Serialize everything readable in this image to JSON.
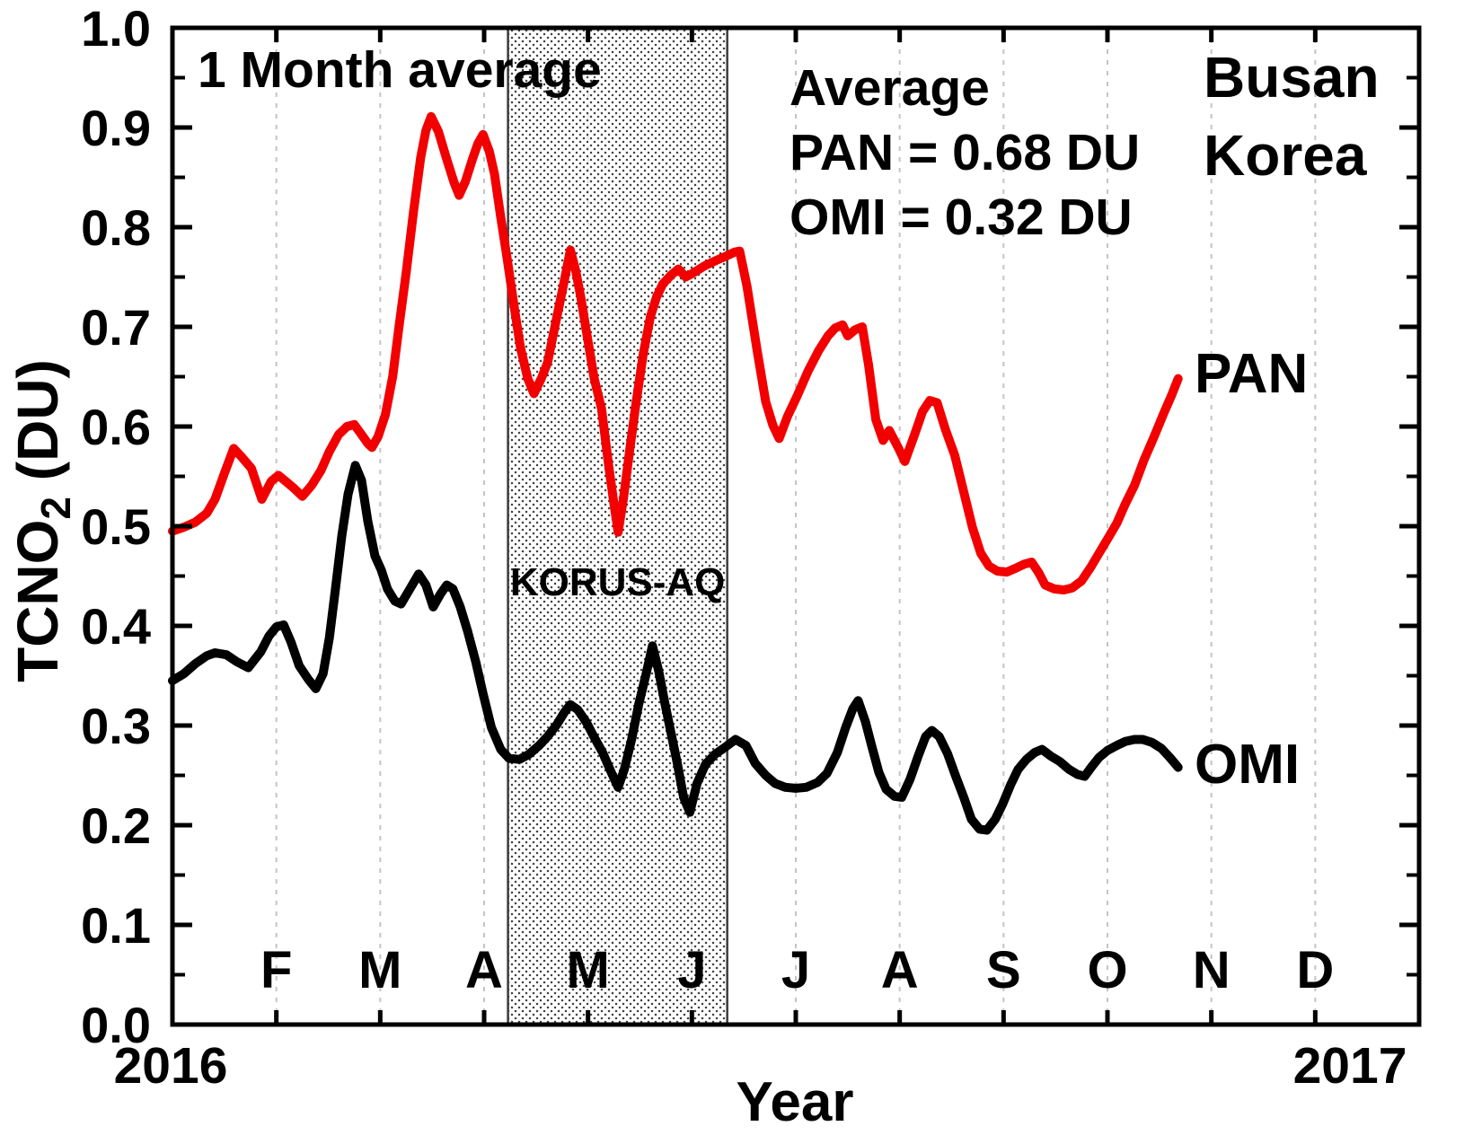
{
  "figure": {
    "note_top_left": "1 Month average",
    "location": {
      "line1": "Busan",
      "line2": "Korea"
    },
    "legend": {
      "header": "Average",
      "pan_line": "PAN = 0.68 DU",
      "omi_line": "OMI = 0.32 DU"
    },
    "campaign_label": "KORUS-AQ",
    "series_label_pan": "PAN",
    "series_label_omi": "OMI",
    "colors": {
      "pan": "#f20000",
      "omi": "#000000",
      "grid": "#c4c4c4",
      "axis": "#000000",
      "box_border": "#3c3c3c",
      "box_dot": "#3f3f3f",
      "background": "#ffffff"
    }
  },
  "chart_data": {
    "type": "line",
    "title": "",
    "xlabel": "Year",
    "ylabel_parts": {
      "main": "TCNO",
      "sub": "2",
      "unit": " (DU)"
    },
    "x_axis": {
      "start_year_label": "2016",
      "end_year_label": "2017",
      "month_tick_labels": [
        "F",
        "M",
        "A",
        "M",
        "J",
        "J",
        "A",
        "S",
        "O",
        "N",
        "D"
      ],
      "range_months": [
        0,
        12
      ],
      "grid": true
    },
    "y_axis": {
      "tick_labels": [
        "0.0",
        "0.1",
        "0.2",
        "0.3",
        "0.4",
        "0.5",
        "0.6",
        "0.7",
        "0.8",
        "0.9",
        "1.0"
      ],
      "major_step": 0.1,
      "minor_step": 0.05,
      "range": [
        0.0,
        1.0
      ]
    },
    "shaded_region": {
      "label": "KORUS-AQ",
      "x_start_month": 3.23,
      "x_end_month": 5.34
    },
    "series": [
      {
        "name": "PAN",
        "color": "#f20000",
        "average_du": 0.68,
        "points": [
          [
            0.0,
            0.495
          ],
          [
            0.11,
            0.499
          ],
          [
            0.22,
            0.504
          ],
          [
            0.33,
            0.513
          ],
          [
            0.41,
            0.527
          ],
          [
            0.5,
            0.553
          ],
          [
            0.59,
            0.578
          ],
          [
            0.67,
            0.569
          ],
          [
            0.76,
            0.558
          ],
          [
            0.86,
            0.527
          ],
          [
            0.95,
            0.545
          ],
          [
            1.02,
            0.551
          ],
          [
            1.09,
            0.545
          ],
          [
            1.17,
            0.538
          ],
          [
            1.25,
            0.53
          ],
          [
            1.34,
            0.541
          ],
          [
            1.43,
            0.556
          ],
          [
            1.51,
            0.575
          ],
          [
            1.6,
            0.592
          ],
          [
            1.68,
            0.6
          ],
          [
            1.75,
            0.602
          ],
          [
            1.82,
            0.592
          ],
          [
            1.88,
            0.583
          ],
          [
            1.92,
            0.579
          ],
          [
            1.98,
            0.59
          ],
          [
            2.05,
            0.612
          ],
          [
            2.12,
            0.65
          ],
          [
            2.18,
            0.7
          ],
          [
            2.25,
            0.755
          ],
          [
            2.32,
            0.815
          ],
          [
            2.39,
            0.87
          ],
          [
            2.44,
            0.897
          ],
          [
            2.49,
            0.911
          ],
          [
            2.56,
            0.896
          ],
          [
            2.64,
            0.868
          ],
          [
            2.71,
            0.845
          ],
          [
            2.76,
            0.832
          ],
          [
            2.82,
            0.846
          ],
          [
            2.89,
            0.869
          ],
          [
            2.94,
            0.884
          ],
          [
            2.99,
            0.893
          ],
          [
            3.05,
            0.876
          ],
          [
            3.1,
            0.853
          ],
          [
            3.16,
            0.81
          ],
          [
            3.22,
            0.77
          ],
          [
            3.29,
            0.72
          ],
          [
            3.35,
            0.679
          ],
          [
            3.42,
            0.648
          ],
          [
            3.48,
            0.633
          ],
          [
            3.55,
            0.648
          ],
          [
            3.61,
            0.664
          ],
          [
            3.68,
            0.7
          ],
          [
            3.76,
            0.74
          ],
          [
            3.83,
            0.777
          ],
          [
            3.88,
            0.757
          ],
          [
            3.93,
            0.73
          ],
          [
            3.99,
            0.692
          ],
          [
            4.06,
            0.648
          ],
          [
            4.13,
            0.618
          ],
          [
            4.2,
            0.56
          ],
          [
            4.25,
            0.522
          ],
          [
            4.29,
            0.494
          ],
          [
            4.34,
            0.527
          ],
          [
            4.4,
            0.575
          ],
          [
            4.46,
            0.622
          ],
          [
            4.53,
            0.672
          ],
          [
            4.6,
            0.71
          ],
          [
            4.66,
            0.73
          ],
          [
            4.72,
            0.743
          ],
          [
            4.8,
            0.752
          ],
          [
            4.87,
            0.758
          ],
          [
            4.94,
            0.75
          ],
          [
            5.01,
            0.754
          ],
          [
            5.12,
            0.761
          ],
          [
            5.22,
            0.766
          ],
          [
            5.33,
            0.771
          ],
          [
            5.41,
            0.775
          ],
          [
            5.46,
            0.776
          ],
          [
            5.53,
            0.741
          ],
          [
            5.63,
            0.675
          ],
          [
            5.71,
            0.625
          ],
          [
            5.78,
            0.601
          ],
          [
            5.84,
            0.588
          ],
          [
            5.92,
            0.61
          ],
          [
            6.01,
            0.63
          ],
          [
            6.12,
            0.656
          ],
          [
            6.22,
            0.676
          ],
          [
            6.31,
            0.691
          ],
          [
            6.38,
            0.699
          ],
          [
            6.45,
            0.702
          ],
          [
            6.5,
            0.691
          ],
          [
            6.57,
            0.697
          ],
          [
            6.64,
            0.7
          ],
          [
            6.7,
            0.662
          ],
          [
            6.77,
            0.607
          ],
          [
            6.84,
            0.586
          ],
          [
            6.9,
            0.596
          ],
          [
            6.99,
            0.578
          ],
          [
            7.05,
            0.565
          ],
          [
            7.14,
            0.591
          ],
          [
            7.22,
            0.615
          ],
          [
            7.29,
            0.626
          ],
          [
            7.36,
            0.624
          ],
          [
            7.44,
            0.597
          ],
          [
            7.53,
            0.571
          ],
          [
            7.62,
            0.533
          ],
          [
            7.7,
            0.499
          ],
          [
            7.78,
            0.473
          ],
          [
            7.86,
            0.46
          ],
          [
            7.94,
            0.455
          ],
          [
            8.03,
            0.454
          ],
          [
            8.12,
            0.458
          ],
          [
            8.2,
            0.462
          ],
          [
            8.27,
            0.464
          ],
          [
            8.34,
            0.453
          ],
          [
            8.4,
            0.441
          ],
          [
            8.49,
            0.437
          ],
          [
            8.58,
            0.436
          ],
          [
            8.66,
            0.438
          ],
          [
            8.75,
            0.445
          ],
          [
            8.84,
            0.459
          ],
          [
            8.92,
            0.473
          ],
          [
            9.0,
            0.487
          ],
          [
            9.09,
            0.503
          ],
          [
            9.17,
            0.522
          ],
          [
            9.26,
            0.541
          ],
          [
            9.35,
            0.566
          ],
          [
            9.45,
            0.59
          ],
          [
            9.54,
            0.613
          ],
          [
            9.62,
            0.632
          ],
          [
            9.68,
            0.648
          ]
        ]
      },
      {
        "name": "OMI",
        "color": "#000000",
        "average_du": 0.32,
        "points": [
          [
            0.0,
            0.345
          ],
          [
            0.11,
            0.352
          ],
          [
            0.22,
            0.362
          ],
          [
            0.33,
            0.37
          ],
          [
            0.41,
            0.373
          ],
          [
            0.52,
            0.371
          ],
          [
            0.62,
            0.364
          ],
          [
            0.73,
            0.358
          ],
          [
            0.85,
            0.374
          ],
          [
            0.93,
            0.39
          ],
          [
            1.0,
            0.399
          ],
          [
            1.07,
            0.401
          ],
          [
            1.14,
            0.384
          ],
          [
            1.22,
            0.36
          ],
          [
            1.31,
            0.346
          ],
          [
            1.38,
            0.337
          ],
          [
            1.45,
            0.352
          ],
          [
            1.51,
            0.388
          ],
          [
            1.57,
            0.438
          ],
          [
            1.63,
            0.49
          ],
          [
            1.69,
            0.532
          ],
          [
            1.76,
            0.561
          ],
          [
            1.82,
            0.546
          ],
          [
            1.88,
            0.505
          ],
          [
            1.95,
            0.47
          ],
          [
            2.01,
            0.456
          ],
          [
            2.07,
            0.437
          ],
          [
            2.14,
            0.425
          ],
          [
            2.2,
            0.422
          ],
          [
            2.28,
            0.436
          ],
          [
            2.37,
            0.452
          ],
          [
            2.44,
            0.441
          ],
          [
            2.51,
            0.419
          ],
          [
            2.58,
            0.432
          ],
          [
            2.64,
            0.441
          ],
          [
            2.7,
            0.437
          ],
          [
            2.77,
            0.419
          ],
          [
            2.84,
            0.395
          ],
          [
            2.92,
            0.364
          ],
          [
            2.99,
            0.332
          ],
          [
            3.07,
            0.298
          ],
          [
            3.16,
            0.276
          ],
          [
            3.24,
            0.267
          ],
          [
            3.34,
            0.266
          ],
          [
            3.43,
            0.271
          ],
          [
            3.53,
            0.28
          ],
          [
            3.61,
            0.289
          ],
          [
            3.7,
            0.301
          ],
          [
            3.77,
            0.313
          ],
          [
            3.83,
            0.321
          ],
          [
            3.9,
            0.316
          ],
          [
            3.98,
            0.304
          ],
          [
            4.05,
            0.29
          ],
          [
            4.14,
            0.273
          ],
          [
            4.22,
            0.254
          ],
          [
            4.29,
            0.238
          ],
          [
            4.35,
            0.256
          ],
          [
            4.42,
            0.286
          ],
          [
            4.49,
            0.322
          ],
          [
            4.56,
            0.352
          ],
          [
            4.62,
            0.38
          ],
          [
            4.68,
            0.355
          ],
          [
            4.74,
            0.322
          ],
          [
            4.8,
            0.292
          ],
          [
            4.86,
            0.262
          ],
          [
            4.92,
            0.228
          ],
          [
            4.98,
            0.213
          ],
          [
            5.05,
            0.242
          ],
          [
            5.13,
            0.261
          ],
          [
            5.22,
            0.271
          ],
          [
            5.33,
            0.279
          ],
          [
            5.42,
            0.286
          ],
          [
            5.52,
            0.28
          ],
          [
            5.61,
            0.262
          ],
          [
            5.71,
            0.25
          ],
          [
            5.8,
            0.242
          ],
          [
            5.9,
            0.238
          ],
          [
            6.0,
            0.237
          ],
          [
            6.1,
            0.238
          ],
          [
            6.21,
            0.243
          ],
          [
            6.3,
            0.252
          ],
          [
            6.4,
            0.273
          ],
          [
            6.48,
            0.298
          ],
          [
            6.55,
            0.317
          ],
          [
            6.6,
            0.325
          ],
          [
            6.67,
            0.304
          ],
          [
            6.73,
            0.28
          ],
          [
            6.8,
            0.253
          ],
          [
            6.87,
            0.236
          ],
          [
            6.95,
            0.229
          ],
          [
            7.02,
            0.228
          ],
          [
            7.1,
            0.246
          ],
          [
            7.18,
            0.27
          ],
          [
            7.25,
            0.289
          ],
          [
            7.31,
            0.295
          ],
          [
            7.38,
            0.289
          ],
          [
            7.46,
            0.272
          ],
          [
            7.54,
            0.249
          ],
          [
            7.62,
            0.227
          ],
          [
            7.69,
            0.206
          ],
          [
            7.77,
            0.196
          ],
          [
            7.84,
            0.195
          ],
          [
            7.92,
            0.206
          ],
          [
            7.99,
            0.221
          ],
          [
            8.07,
            0.241
          ],
          [
            8.14,
            0.256
          ],
          [
            8.22,
            0.266
          ],
          [
            8.3,
            0.273
          ],
          [
            8.37,
            0.276
          ],
          [
            8.46,
            0.269
          ],
          [
            8.54,
            0.264
          ],
          [
            8.63,
            0.256
          ],
          [
            8.71,
            0.251
          ],
          [
            8.78,
            0.249
          ],
          [
            8.85,
            0.259
          ],
          [
            8.92,
            0.268
          ],
          [
            9.0,
            0.275
          ],
          [
            9.09,
            0.28
          ],
          [
            9.17,
            0.284
          ],
          [
            9.26,
            0.286
          ],
          [
            9.34,
            0.286
          ],
          [
            9.43,
            0.283
          ],
          [
            9.52,
            0.277
          ],
          [
            9.6,
            0.268
          ],
          [
            9.68,
            0.258
          ]
        ]
      }
    ],
    "legend_position": "top-right-inside",
    "grid": "vertical-dashed-monthly"
  }
}
